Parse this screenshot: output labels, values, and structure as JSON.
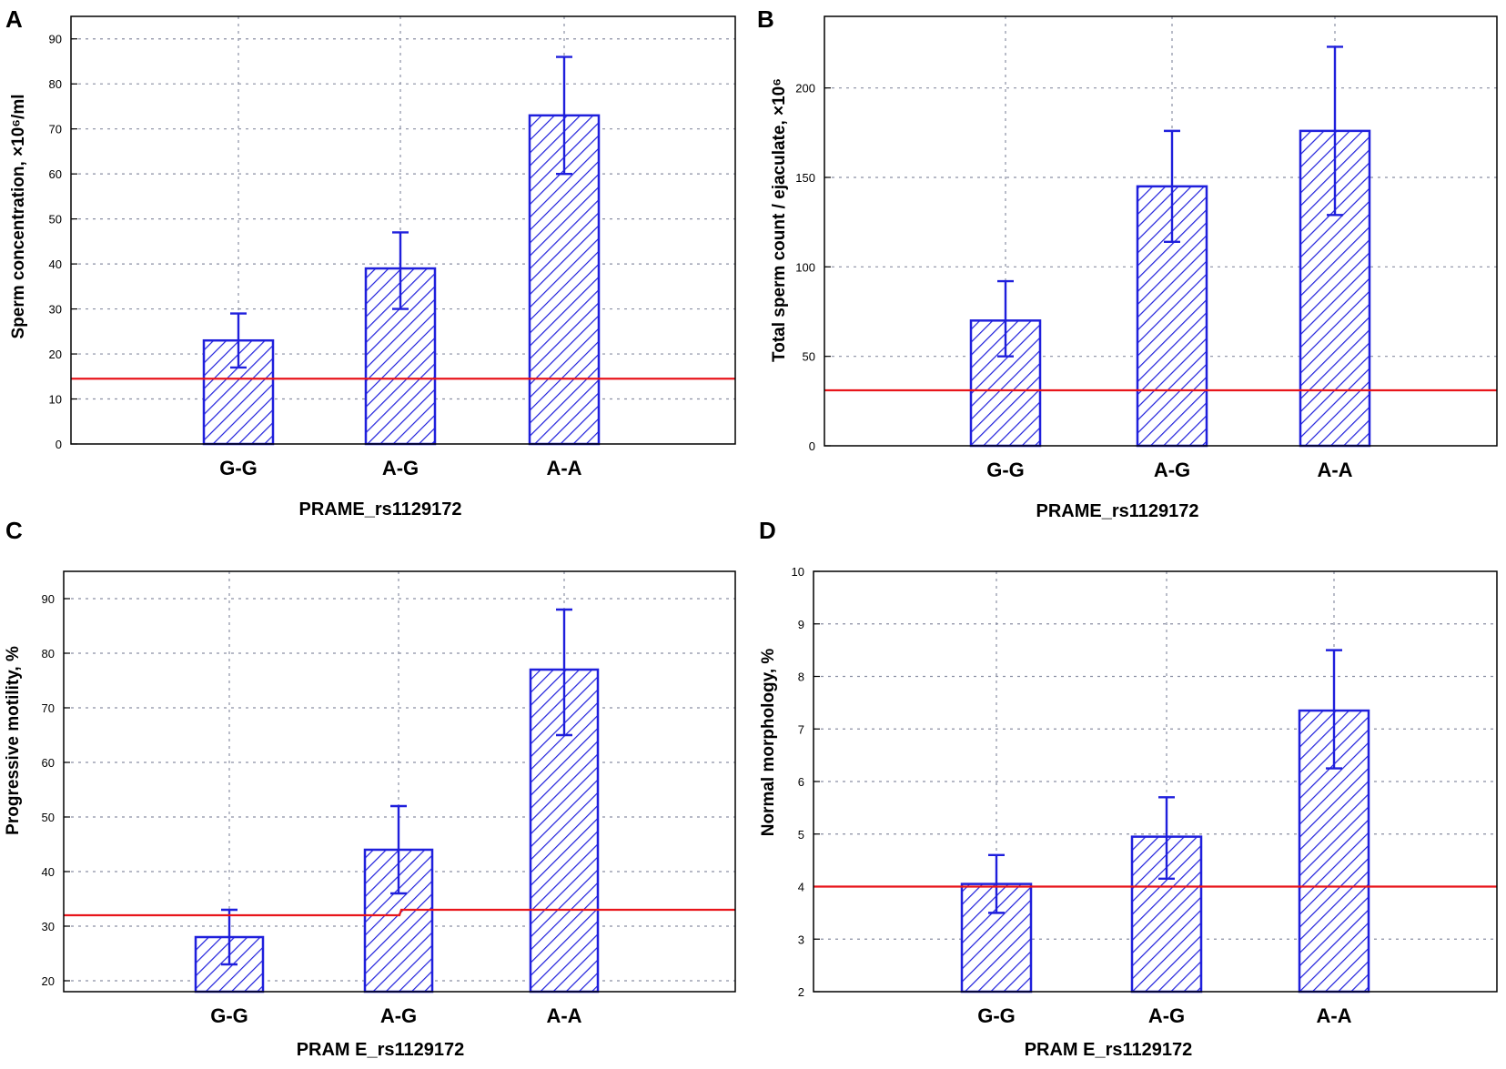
{
  "colors": {
    "bar": "#1f1fdc",
    "reference": "#e8151b",
    "grid": "#8a8fa3",
    "axis": "#000000"
  },
  "chart_data": [
    {
      "panel": "A",
      "type": "bar",
      "xlabel": "PRAME_rs1129172",
      "ylabel": "Sperm concentration, ×10⁶/ml",
      "categories": [
        "G-G",
        "A-G",
        "A-A"
      ],
      "values": [
        23,
        39,
        73
      ],
      "error_low": [
        17,
        30,
        60
      ],
      "error_high": [
        29,
        47,
        86
      ],
      "reference_line": [
        14.5,
        14.5
      ],
      "ylim": [
        0,
        95
      ],
      "yticks": [
        "0",
        "10",
        "20",
        "30",
        "40",
        "50",
        "60",
        "70",
        "80",
        "90"
      ],
      "grid": true
    },
    {
      "panel": "B",
      "type": "bar",
      "xlabel": "PRAME_rs1129172",
      "ylabel": "Total sperm count / ejaculate, ×10⁶",
      "categories": [
        "G-G",
        "A-G",
        "A-A"
      ],
      "values": [
        70,
        145,
        176
      ],
      "error_low": [
        50,
        114,
        129
      ],
      "error_high": [
        92,
        176,
        223
      ],
      "reference_line": [
        31,
        31
      ],
      "ylim": [
        0,
        240
      ],
      "yticks": [
        "0",
        "50",
        "100",
        "150",
        "200"
      ],
      "grid": true
    },
    {
      "panel": "C",
      "type": "bar",
      "xlabel": "PRAM E_rs1129172",
      "ylabel": "Progressive motility, %",
      "categories": [
        "G-G",
        "A-G",
        "A-A"
      ],
      "values": [
        28,
        44,
        77
      ],
      "error_low": [
        23,
        36,
        65
      ],
      "error_high": [
        33,
        52,
        88
      ],
      "reference_line": [
        32,
        33
      ],
      "ylim": [
        18,
        95
      ],
      "yticks": [
        "20",
        "30",
        "40",
        "50",
        "60",
        "70",
        "80",
        "90"
      ],
      "grid": true
    },
    {
      "panel": "D",
      "type": "bar",
      "xlabel": "PRAM E_rs1129172",
      "ylabel": "Normal morphology, %",
      "categories": [
        "G-G",
        "A-G",
        "A-A"
      ],
      "values": [
        4.05,
        4.95,
        7.35
      ],
      "error_low": [
        3.5,
        4.15,
        6.25
      ],
      "error_high": [
        4.6,
        5.7,
        8.5
      ],
      "reference_line": [
        4,
        4
      ],
      "ylim": [
        2,
        10
      ],
      "yticks": [
        "2",
        "3",
        "4",
        "5",
        "6",
        "7",
        "8",
        "9",
        "10"
      ],
      "grid": true
    }
  ]
}
